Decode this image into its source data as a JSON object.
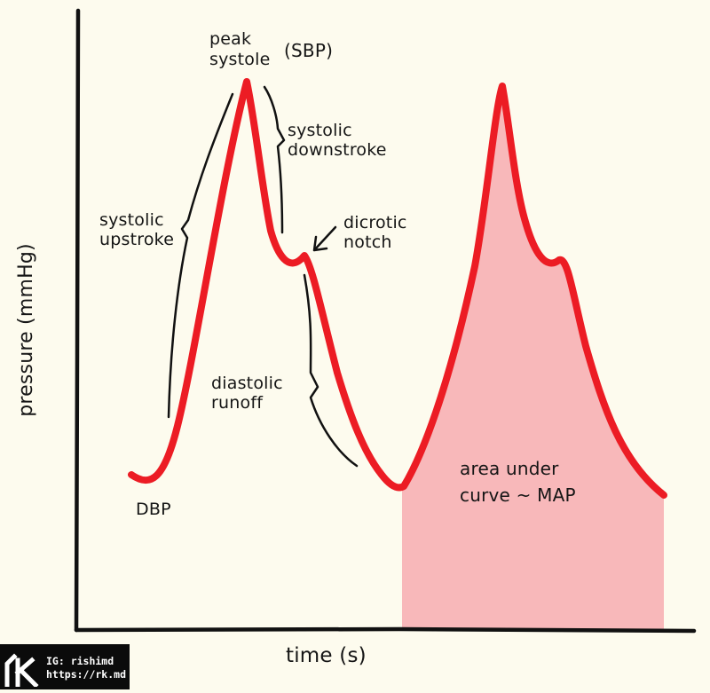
{
  "labels": {
    "peak_systole_line1": "peak",
    "peak_systole_line2": "systole",
    "sbp": "(SBP)",
    "systolic_upstroke": "systolic\nupstroke",
    "systolic_downstroke": "systolic\ndownstroke",
    "dicrotic_notch": "dicrotic\nnotch",
    "diastolic_runoff": "diastolic\nrunoff",
    "dbp": "DBP",
    "area_under_curve": "area under\ncurve ~ MAP"
  },
  "axes": {
    "x_label": "time (s)",
    "y_label": "pressure (mmHg)"
  },
  "watermark": {
    "line1": "IG: rishimd",
    "line2": "https://rk.md"
  },
  "colors": {
    "background": "#fdfbee",
    "curve": "#ec1c24",
    "area_fill": "#f8b8ba",
    "ink": "#151515",
    "watermark_bg": "#0b0b0b"
  }
}
